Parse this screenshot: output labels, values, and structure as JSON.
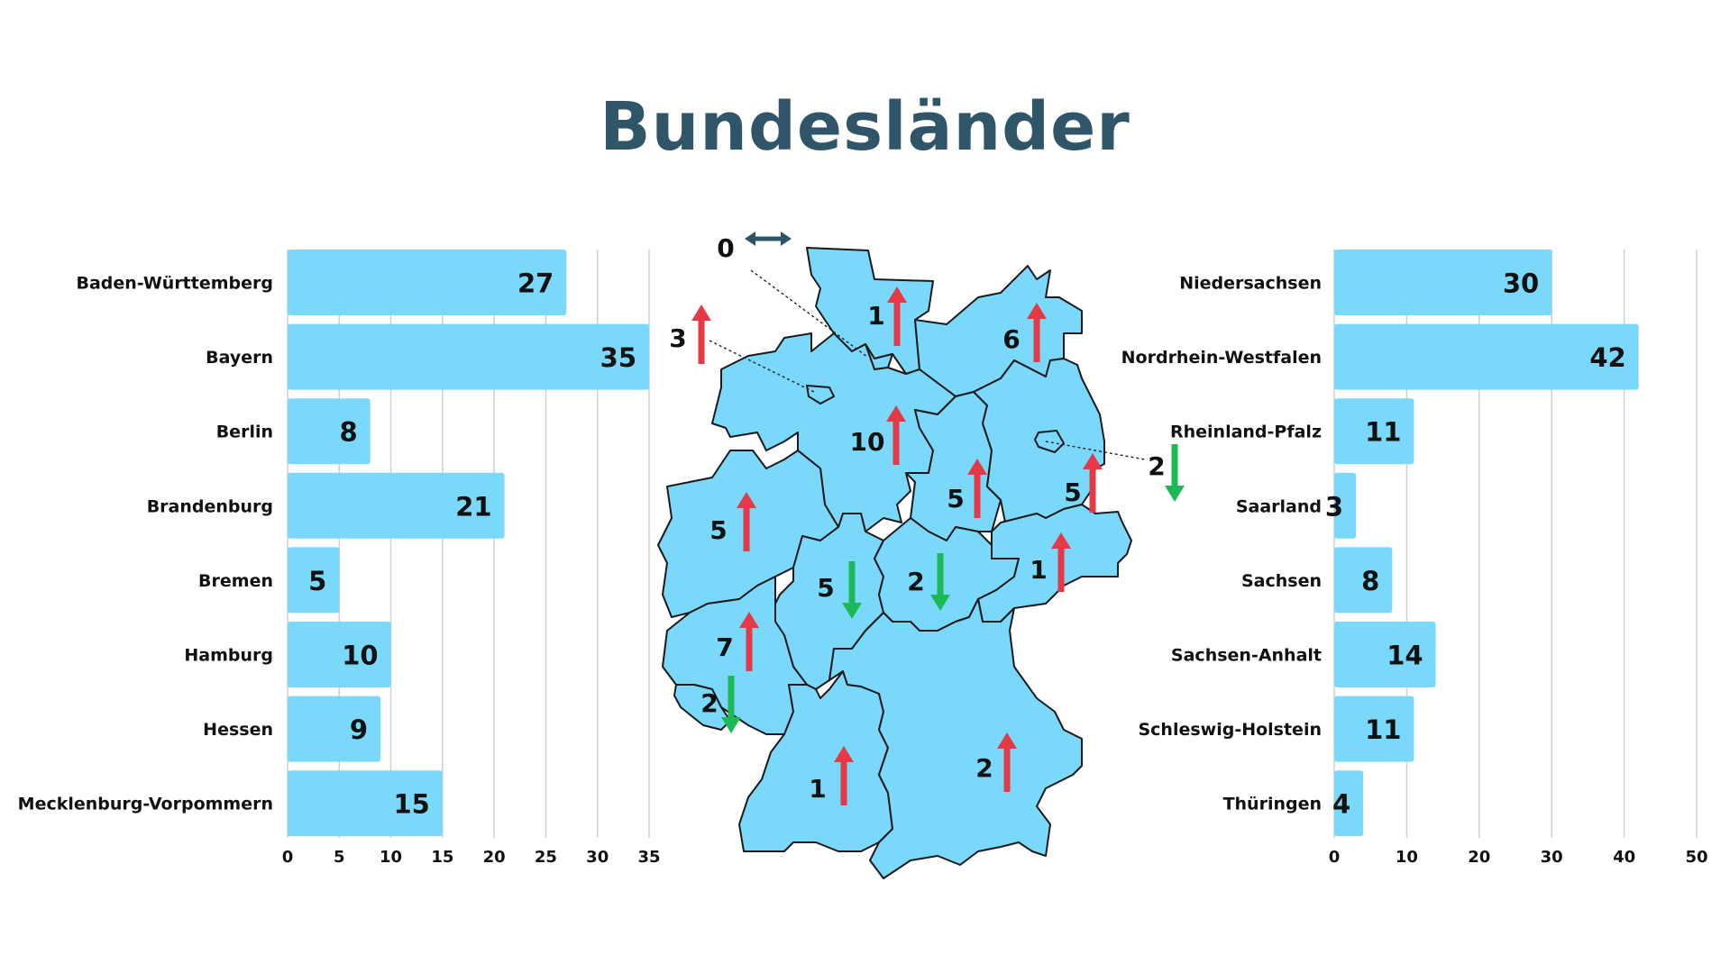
{
  "title": "Bundesländer",
  "colors": {
    "bar": "#7ad9fb",
    "title": "#2f5568",
    "up": "#e63946",
    "down": "#1db954",
    "neutral": "#2f5568",
    "grid": "#cfcfcf"
  },
  "chart_data": [
    {
      "type": "bar",
      "orientation": "horizontal",
      "categories": [
        "Baden-Württemberg",
        "Bayern",
        "Berlin",
        "Brandenburg",
        "Bremen",
        "Hamburg",
        "Hessen",
        "Mecklenburg-Vorpommern"
      ],
      "values": [
        27,
        35,
        8,
        21,
        5,
        10,
        9,
        15
      ],
      "xlim": [
        0,
        35
      ],
      "ticks": [
        "0",
        "5",
        "10",
        "15",
        "20",
        "25",
        "30",
        "35"
      ],
      "grid": true
    },
    {
      "type": "bar",
      "orientation": "horizontal",
      "categories": [
        "Niedersachsen",
        "Nordrhein-Westfalen",
        "Rheinland-Pfalz",
        "Saarland",
        "Sachsen",
        "Sachsen-Anhalt",
        "Schleswig-Holstein",
        "Thüringen"
      ],
      "values": [
        30,
        42,
        11,
        3,
        8,
        14,
        11,
        4
      ],
      "xlim": [
        0,
        50
      ],
      "ticks": [
        "0",
        "10",
        "20",
        "30",
        "40",
        "50"
      ],
      "grid": true
    }
  ],
  "map": {
    "markers": [
      {
        "state": "Hamburg",
        "value": "0",
        "trend": "neutral"
      },
      {
        "state": "Bremen",
        "value": "3",
        "trend": "up"
      },
      {
        "state": "Schleswig-Holstein",
        "value": "1",
        "trend": "up"
      },
      {
        "state": "Mecklenburg-Vorpommern",
        "value": "6",
        "trend": "up"
      },
      {
        "state": "Niedersachsen",
        "value": "10",
        "trend": "up"
      },
      {
        "state": "Sachsen-Anhalt",
        "value": "5",
        "trend": "up"
      },
      {
        "state": "Brandenburg",
        "value": "5",
        "trend": "up"
      },
      {
        "state": "Berlin",
        "value": "2",
        "trend": "down"
      },
      {
        "state": "Nordrhein-Westfalen",
        "value": "5",
        "trend": "up"
      },
      {
        "state": "Hessen",
        "value": "5",
        "trend": "down"
      },
      {
        "state": "Thüringen",
        "value": "2",
        "trend": "down"
      },
      {
        "state": "Sachsen",
        "value": "1",
        "trend": "up"
      },
      {
        "state": "Rheinland-Pfalz",
        "value": "7",
        "trend": "up"
      },
      {
        "state": "Saarland",
        "value": "2",
        "trend": "down"
      },
      {
        "state": "Baden-Württemberg",
        "value": "1",
        "trend": "up"
      },
      {
        "state": "Bayern",
        "value": "2",
        "trend": "up"
      }
    ]
  }
}
